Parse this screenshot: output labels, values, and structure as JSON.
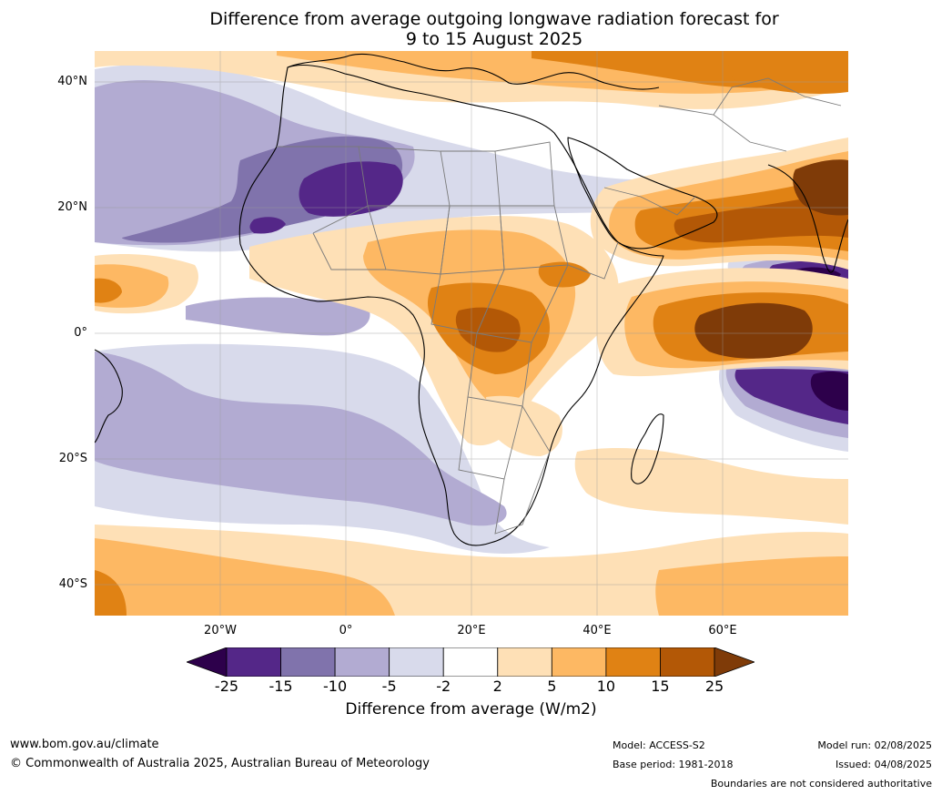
{
  "title": {
    "line1": "Difference from average outgoing longwave radiation forecast for",
    "line2": "9 to 15 August 2025"
  },
  "map": {
    "lat_labels": [
      "40°N",
      "20°N",
      "0°",
      "20°S",
      "40°S"
    ],
    "lon_labels": [
      "20°W",
      "0°",
      "20°E",
      "40°E",
      "60°E"
    ],
    "extent": {
      "lon_min": -40,
      "lon_max": 80,
      "lat_min": -45,
      "lat_max": 45
    },
    "gridlines": true,
    "region": "Africa, Atlantic and Indian Ocean"
  },
  "colorbar": {
    "ticks": [
      "-25",
      "-15",
      "-10",
      "-5",
      "-2",
      "2",
      "5",
      "10",
      "15",
      "25"
    ],
    "colors": [
      "#2d004b",
      "#542788",
      "#8073ac",
      "#b2abd2",
      "#d8daeb",
      "#ffffff",
      "#fee0b6",
      "#fdb863",
      "#e08214",
      "#b35806",
      "#7f3b08"
    ],
    "extend": "both",
    "label": "Difference from average (W/m2)"
  },
  "footer": {
    "url": "www.bom.gov.au/climate",
    "copyright": "© Commonwealth of Australia 2025, Australian Bureau of Meteorology",
    "model": "Model: ACCESS-S2",
    "base_period": "Base period: 1981-2018",
    "model_run": "Model run: 02/08/2025",
    "issued": "Issued: 04/08/2025",
    "disclaimer": "Boundaries are not considered authoritative"
  }
}
